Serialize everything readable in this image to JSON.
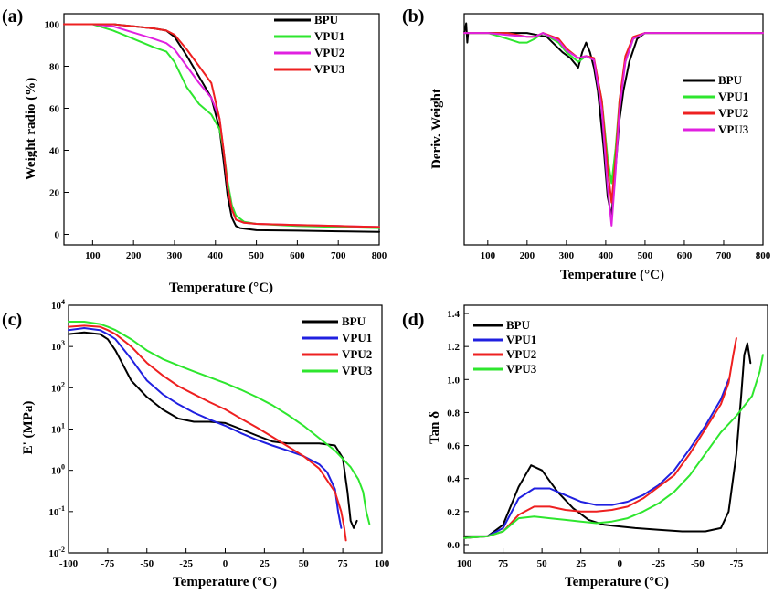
{
  "chart_data": [
    {
      "panel_label": "(a)",
      "type": "line",
      "xlabel": "Temperature (°C)",
      "ylabel": "Weight radio (%)",
      "xlim": [
        30,
        800
      ],
      "ylim": [
        -5,
        105
      ],
      "xticks": [
        100,
        200,
        300,
        400,
        500,
        600,
        700,
        800
      ],
      "yticks": [
        0,
        20,
        40,
        60,
        80,
        100
      ],
      "legend": "top-right",
      "series": [
        {
          "name": "BPU",
          "color": "#000000",
          "x": [
            30,
            100,
            150,
            200,
            250,
            280,
            300,
            330,
            360,
            390,
            410,
            420,
            430,
            440,
            450,
            460,
            480,
            500,
            600,
            700,
            800
          ],
          "y": [
            100,
            100,
            100,
            99,
            98,
            97,
            94,
            85,
            75,
            65,
            50,
            35,
            18,
            8,
            4,
            3,
            2.5,
            2,
            1.8,
            1.5,
            1.2
          ]
        },
        {
          "name": "VPU1",
          "color": "#2ee62e",
          "x": [
            30,
            100,
            150,
            200,
            250,
            280,
            300,
            330,
            360,
            390,
            410,
            420,
            430,
            440,
            450,
            470,
            500,
            600,
            700,
            800
          ],
          "y": [
            100,
            100,
            97,
            93,
            89,
            87,
            82,
            70,
            62,
            57,
            50,
            40,
            25,
            14,
            9,
            6,
            5,
            4,
            3.5,
            3
          ]
        },
        {
          "name": "VPU2",
          "color": "#e020e0",
          "x": [
            30,
            100,
            150,
            200,
            250,
            280,
            300,
            330,
            360,
            390,
            410,
            420,
            430,
            440,
            450,
            470,
            500,
            600,
            700,
            800
          ],
          "y": [
            100,
            100,
            99,
            96,
            93,
            91,
            88,
            80,
            72,
            65,
            55,
            40,
            22,
            12,
            7,
            5.5,
            5,
            4.5,
            4,
            3.5
          ]
        },
        {
          "name": "VPU3",
          "color": "#ee2020",
          "x": [
            30,
            100,
            150,
            200,
            250,
            280,
            300,
            330,
            360,
            390,
            410,
            420,
            430,
            440,
            450,
            470,
            500,
            600,
            700,
            800
          ],
          "y": [
            100,
            100,
            100,
            99,
            98,
            97,
            95,
            88,
            80,
            72,
            55,
            40,
            22,
            12,
            7,
            5.5,
            5,
            4.5,
            4,
            3.5
          ]
        }
      ]
    },
    {
      "panel_label": "(b)",
      "type": "line",
      "xlabel": "Temperature (°C)",
      "ylabel": "Deriv. Weight",
      "xlim": [
        40,
        800
      ],
      "ylim": [
        -1.1,
        0.1
      ],
      "xticks": [
        100,
        200,
        300,
        400,
        500,
        600,
        700,
        800
      ],
      "legend": "middle-right",
      "series": [
        {
          "name": "BPU",
          "color": "#000000",
          "x": [
            40,
            45,
            48,
            50,
            100,
            200,
            250,
            290,
            310,
            330,
            340,
            350,
            360,
            370,
            380,
            395,
            405,
            415,
            425,
            435,
            445,
            460,
            480,
            500,
            600,
            700,
            800
          ],
          "y": [
            0,
            0.05,
            -0.05,
            0,
            0,
            0,
            -0.02,
            -0.1,
            -0.13,
            -0.18,
            -0.1,
            -0.05,
            -0.1,
            -0.18,
            -0.3,
            -0.6,
            -0.85,
            -0.95,
            -0.7,
            -0.45,
            -0.3,
            -0.15,
            -0.03,
            0,
            0,
            0,
            0
          ]
        },
        {
          "name": "VPU1",
          "color": "#2ee62e",
          "x": [
            40,
            100,
            150,
            180,
            200,
            220,
            240,
            280,
            300,
            330,
            350,
            370,
            390,
            405,
            415,
            425,
            435,
            450,
            470,
            500,
            600,
            700,
            800
          ],
          "y": [
            0,
            0,
            -0.03,
            -0.05,
            -0.05,
            -0.03,
            0,
            -0.05,
            -0.1,
            -0.15,
            -0.12,
            -0.14,
            -0.35,
            -0.65,
            -0.78,
            -0.6,
            -0.35,
            -0.15,
            -0.03,
            0,
            0,
            0,
            0
          ]
        },
        {
          "name": "VPU2",
          "color": "#ee2020",
          "x": [
            40,
            100,
            150,
            200,
            220,
            240,
            280,
            300,
            330,
            350,
            370,
            390,
            405,
            415,
            425,
            435,
            450,
            470,
            500,
            600,
            700,
            800
          ],
          "y": [
            0,
            0,
            0,
            -0.02,
            -0.02,
            0,
            -0.03,
            -0.08,
            -0.13,
            -0.12,
            -0.13,
            -0.35,
            -0.7,
            -0.88,
            -0.65,
            -0.35,
            -0.12,
            -0.02,
            0,
            0,
            0,
            0
          ]
        },
        {
          "name": "VPU3",
          "color": "#e020e0",
          "x": [
            40,
            100,
            150,
            200,
            220,
            240,
            280,
            300,
            330,
            350,
            370,
            390,
            405,
            415,
            425,
            435,
            450,
            470,
            500,
            600,
            700,
            800
          ],
          "y": [
            0,
            0,
            -0.01,
            -0.02,
            -0.02,
            0,
            -0.04,
            -0.09,
            -0.13,
            -0.12,
            -0.14,
            -0.4,
            -0.8,
            -1.0,
            -0.72,
            -0.4,
            -0.15,
            -0.03,
            0,
            0,
            0,
            0
          ]
        }
      ]
    },
    {
      "panel_label": "(c)",
      "type": "line",
      "xlabel": "Temperature (°C)",
      "ylabel": "E' (MPa)",
      "yscale": "log",
      "xlim": [
        -100,
        100
      ],
      "ylim_exp": [
        -2,
        4
      ],
      "xticks": [
        -100,
        -75,
        -50,
        -25,
        0,
        25,
        50,
        75,
        100
      ],
      "ytick_exps": [
        -2,
        -1,
        0,
        1,
        2,
        3,
        4
      ],
      "legend": "top-right",
      "series": [
        {
          "name": "BPU",
          "color": "#000000",
          "x": [
            -100,
            -90,
            -80,
            -75,
            -70,
            -60,
            -50,
            -40,
            -30,
            -20,
            -10,
            0,
            10,
            20,
            30,
            40,
            50,
            60,
            70,
            75,
            78,
            80,
            82,
            84
          ],
          "y": [
            2000,
            2200,
            2000,
            1500,
            800,
            150,
            60,
            30,
            18,
            15,
            15,
            14,
            10,
            7,
            5,
            4.5,
            4.5,
            4.5,
            4,
            2,
            0.3,
            0.06,
            0.04,
            0.06
          ]
        },
        {
          "name": "VPU1",
          "color": "#2020e0",
          "x": [
            -100,
            -90,
            -80,
            -75,
            -70,
            -60,
            -50,
            -40,
            -30,
            -20,
            -10,
            0,
            10,
            20,
            30,
            40,
            50,
            60,
            65,
            70,
            72,
            74
          ],
          "y": [
            2500,
            2800,
            2500,
            2000,
            1500,
            500,
            150,
            70,
            40,
            25,
            17,
            12,
            8,
            5.5,
            4,
            3,
            2.2,
            1.4,
            0.9,
            0.35,
            0.1,
            0.04
          ]
        },
        {
          "name": "VPU2",
          "color": "#ee2020",
          "x": [
            -100,
            -90,
            -80,
            -75,
            -70,
            -60,
            -50,
            -40,
            -30,
            -20,
            -10,
            0,
            10,
            20,
            30,
            40,
            50,
            60,
            70,
            74,
            76,
            77
          ],
          "y": [
            3000,
            3200,
            3000,
            2500,
            2000,
            1000,
            400,
            200,
            110,
            70,
            45,
            30,
            18,
            11,
            6.5,
            3.8,
            2.2,
            1.1,
            0.3,
            0.1,
            0.04,
            0.02
          ]
        },
        {
          "name": "VPU3",
          "color": "#2ee62e",
          "x": [
            -100,
            -90,
            -80,
            -75,
            -70,
            -60,
            -50,
            -40,
            -30,
            -20,
            -10,
            0,
            10,
            20,
            30,
            40,
            50,
            60,
            70,
            80,
            85,
            88,
            90,
            92
          ],
          "y": [
            4000,
            4000,
            3500,
            3000,
            2500,
            1500,
            800,
            500,
            350,
            250,
            180,
            130,
            90,
            60,
            38,
            22,
            12,
            6,
            3,
            1.2,
            0.6,
            0.3,
            0.1,
            0.05
          ]
        }
      ]
    },
    {
      "panel_label": "(d)",
      "type": "line",
      "xlabel": "Temperature (°C)",
      "ylabel": "Tan δ",
      "xlim": [
        100,
        -95
      ],
      "ylim": [
        -0.05,
        1.45
      ],
      "xticks": [
        100,
        75,
        50,
        25,
        0,
        -25,
        -50,
        -75
      ],
      "yticks": [
        0.0,
        0.2,
        0.4,
        0.6,
        0.8,
        1.0,
        1.2,
        1.4
      ],
      "legend": "top-left",
      "series": [
        {
          "name": "BPU",
          "color": "#000000",
          "x": [
            100,
            85,
            75,
            65,
            57,
            50,
            40,
            30,
            20,
            10,
            0,
            -10,
            -25,
            -40,
            -55,
            -65,
            -70,
            -75,
            -78,
            -80,
            -82,
            -84
          ],
          "y": [
            0.05,
            0.05,
            0.12,
            0.35,
            0.48,
            0.45,
            0.32,
            0.22,
            0.15,
            0.12,
            0.11,
            0.1,
            0.09,
            0.08,
            0.08,
            0.1,
            0.2,
            0.55,
            0.9,
            1.15,
            1.22,
            1.1
          ]
        },
        {
          "name": "VPU1",
          "color": "#2020e0",
          "x": [
            100,
            85,
            75,
            65,
            55,
            45,
            35,
            25,
            15,
            5,
            -5,
            -15,
            -25,
            -35,
            -45,
            -55,
            -65,
            -70
          ],
          "y": [
            0.04,
            0.05,
            0.1,
            0.28,
            0.34,
            0.34,
            0.3,
            0.26,
            0.24,
            0.24,
            0.26,
            0.3,
            0.36,
            0.45,
            0.58,
            0.72,
            0.88,
            1.0
          ]
        },
        {
          "name": "VPU2",
          "color": "#ee2020",
          "x": [
            100,
            85,
            75,
            65,
            55,
            45,
            35,
            25,
            15,
            5,
            -5,
            -15,
            -25,
            -35,
            -45,
            -55,
            -65,
            -70,
            -73,
            -75
          ],
          "y": [
            0.04,
            0.05,
            0.08,
            0.18,
            0.23,
            0.23,
            0.21,
            0.2,
            0.2,
            0.21,
            0.23,
            0.28,
            0.35,
            0.42,
            0.55,
            0.7,
            0.85,
            0.98,
            1.15,
            1.25
          ]
        },
        {
          "name": "VPU3",
          "color": "#2ee62e",
          "x": [
            100,
            85,
            75,
            65,
            55,
            45,
            35,
            25,
            15,
            5,
            -5,
            -15,
            -25,
            -35,
            -45,
            -55,
            -65,
            -75,
            -85,
            -90,
            -92
          ],
          "y": [
            0.04,
            0.05,
            0.08,
            0.16,
            0.17,
            0.16,
            0.15,
            0.14,
            0.13,
            0.14,
            0.16,
            0.2,
            0.25,
            0.32,
            0.42,
            0.55,
            0.68,
            0.78,
            0.9,
            1.05,
            1.15
          ]
        }
      ]
    }
  ]
}
